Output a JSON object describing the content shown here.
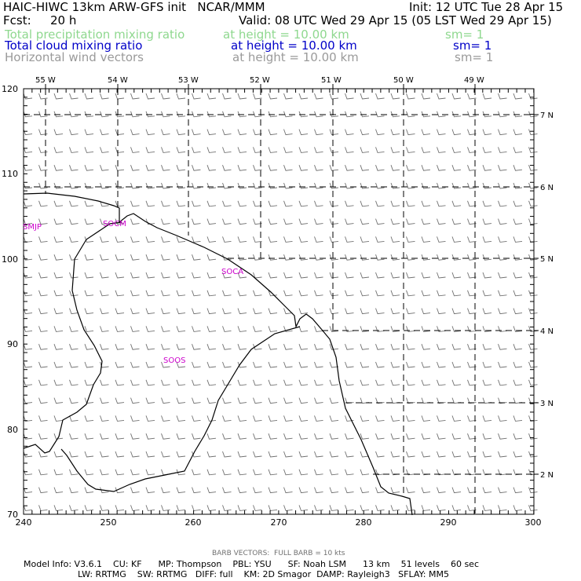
{
  "header": {
    "title": "HAIC-HIWC 13km ARW-GFS init   NCAR/MMM",
    "init": "Init: 12 UTC Tue 28 Apr 15",
    "fcst_label": "Fcst:",
    "fcst_value": "20 h",
    "valid": "Valid: 08 UTC Wed 29 Apr 15 (05 LST Wed 29 Apr 15)",
    "fields": [
      {
        "name": "Total precipitation mixing ratio",
        "height": "at height = 10.00 km",
        "sm": "sm= 1",
        "color": "#8fd88f"
      },
      {
        "name": "Total cloud mixing ratio",
        "height": "at height = 10.00 km",
        "sm": "sm= 1",
        "color": "#0000c8"
      },
      {
        "name": "Horizontal wind vectors",
        "height": "at height = 10.00 km",
        "sm": "sm= 1",
        "color": "#9a9a9a"
      }
    ]
  },
  "map": {
    "top_longitude_labels": [
      "55 W",
      "54 W",
      "53 W",
      "52 W",
      "51 W",
      "50 W",
      "49 W"
    ],
    "right_latitude_labels": [
      "7 N",
      "6 N",
      "5 N",
      "4 N",
      "3 N",
      "2 N"
    ],
    "x_axis_ticks": [
      "240",
      "250",
      "260",
      "270",
      "280",
      "290",
      "300"
    ],
    "y_axis_ticks": [
      "70",
      "80",
      "90",
      "100",
      "110",
      "120"
    ],
    "x_range": [
      240,
      300
    ],
    "y_range": [
      70,
      120
    ],
    "stations": [
      "SMJP",
      "SOCM",
      "SOCA",
      "SOOS"
    ],
    "station_color": "#cc00cc",
    "coastline_color": "#000000",
    "wind_barb_color": "#707070"
  },
  "footer": {
    "barb_note": "BARB VECTORS:  FULL BARB = 10 kts",
    "model_line1": "Model Info: V3.6.1    CU: KF      MP: Thompson    PBL: YSU      SF: Noah LSM      13 km    51 levels    60 sec",
    "model_line2": "LW: RRTMG    SW: RRTMG   DIFF: full    KM: 2D Smagor  DAMP: Rayleigh3   SFLAY: MM5"
  }
}
